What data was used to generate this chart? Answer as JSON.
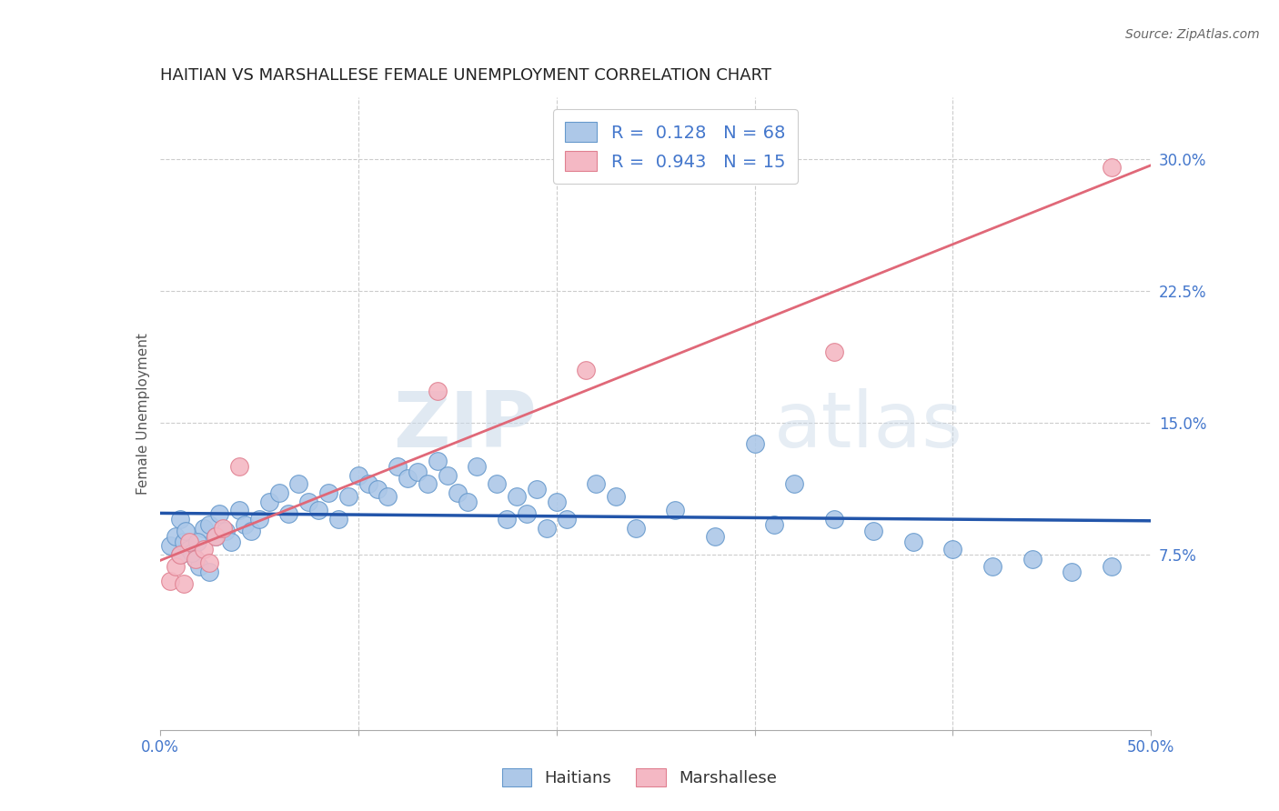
{
  "title": "HAITIAN VS MARSHALLESE FEMALE UNEMPLOYMENT CORRELATION CHART",
  "source": "Source: ZipAtlas.com",
  "ylabel": "Female Unemployment",
  "xlim": [
    0.0,
    0.5
  ],
  "ylim": [
    -0.025,
    0.335
  ],
  "ytick_positions": [
    0.075,
    0.15,
    0.225,
    0.3
  ],
  "ytick_labels": [
    "7.5%",
    "15.0%",
    "22.5%",
    "30.0%"
  ],
  "haitian_R": 0.128,
  "haitian_N": 68,
  "marshallese_R": 0.943,
  "marshallese_N": 15,
  "haitian_color": "#adc8e8",
  "haitian_edge_color": "#6699cc",
  "haitian_line_color": "#2255aa",
  "marshallese_color": "#f4b8c4",
  "marshallese_edge_color": "#e08090",
  "marshallese_line_color": "#e06878",
  "background_color": "#ffffff",
  "grid_color": "#cccccc",
  "title_color": "#222222",
  "watermark_zip": "ZIP",
  "watermark_atlas": "atlas",
  "haitian_x": [
    0.005,
    0.008,
    0.01,
    0.012,
    0.015,
    0.018,
    0.02,
    0.022,
    0.025,
    0.01,
    0.013,
    0.016,
    0.019,
    0.025,
    0.028,
    0.03,
    0.033,
    0.036,
    0.04,
    0.043,
    0.046,
    0.05,
    0.055,
    0.06,
    0.065,
    0.07,
    0.075,
    0.08,
    0.085,
    0.09,
    0.095,
    0.1,
    0.105,
    0.11,
    0.115,
    0.12,
    0.125,
    0.13,
    0.135,
    0.14,
    0.145,
    0.15,
    0.155,
    0.16,
    0.17,
    0.175,
    0.18,
    0.185,
    0.19,
    0.195,
    0.2,
    0.205,
    0.22,
    0.23,
    0.24,
    0.26,
    0.28,
    0.3,
    0.31,
    0.32,
    0.34,
    0.36,
    0.38,
    0.4,
    0.42,
    0.44,
    0.46,
    0.48
  ],
  "haitian_y": [
    0.08,
    0.085,
    0.075,
    0.082,
    0.078,
    0.072,
    0.068,
    0.09,
    0.065,
    0.095,
    0.088,
    0.076,
    0.082,
    0.092,
    0.085,
    0.098,
    0.088,
    0.082,
    0.1,
    0.092,
    0.088,
    0.095,
    0.105,
    0.11,
    0.098,
    0.115,
    0.105,
    0.1,
    0.11,
    0.095,
    0.108,
    0.12,
    0.115,
    0.112,
    0.108,
    0.125,
    0.118,
    0.122,
    0.115,
    0.128,
    0.12,
    0.11,
    0.105,
    0.125,
    0.115,
    0.095,
    0.108,
    0.098,
    0.112,
    0.09,
    0.105,
    0.095,
    0.115,
    0.108,
    0.09,
    0.1,
    0.085,
    0.138,
    0.092,
    0.115,
    0.095,
    0.088,
    0.082,
    0.078,
    0.068,
    0.072,
    0.065,
    0.068
  ],
  "marshallese_x": [
    0.005,
    0.008,
    0.01,
    0.012,
    0.015,
    0.018,
    0.022,
    0.025,
    0.028,
    0.032,
    0.04,
    0.14,
    0.215,
    0.34,
    0.48
  ],
  "marshallese_y": [
    0.06,
    0.068,
    0.075,
    0.058,
    0.082,
    0.072,
    0.078,
    0.07,
    0.085,
    0.09,
    0.125,
    0.168,
    0.18,
    0.19,
    0.295
  ]
}
